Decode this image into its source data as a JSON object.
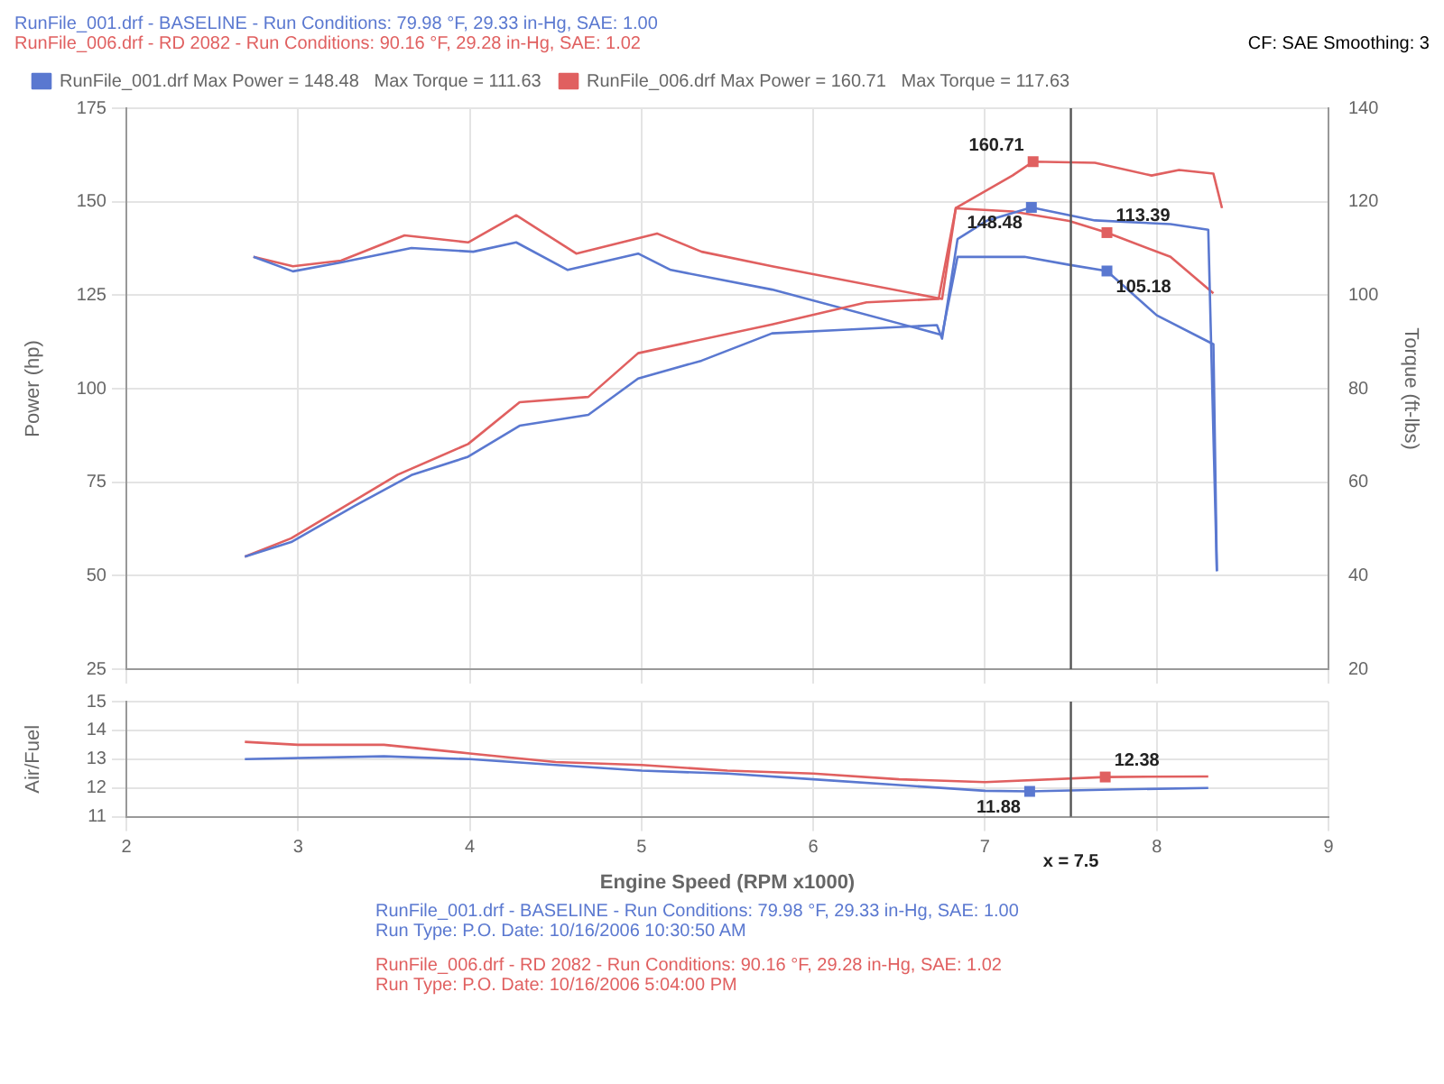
{
  "chart_data": [
    {
      "type": "line",
      "annotations": [
        "RunFile_001.drf - BASELINE - Run Conditions: 79.98 °F, 29.33 in-Hg, SAE: 1.00",
        "RunFile_006.drf - RD 2082 - Run Conditions: 90.16 °F, 29.28 in-Hg, SAE: 1.02",
        "CF: SAE Smoothing: 3"
      ],
      "ylabel": "Power (hp)",
      "y2label": "Torque (ft-lbs)",
      "xlim": [
        2,
        9
      ],
      "xticks": [
        2,
        3,
        4,
        5,
        6,
        7,
        8,
        9
      ],
      "ylim": [
        25,
        175
      ],
      "yticks": [
        25,
        50,
        75,
        100,
        125,
        150,
        175
      ],
      "y2lim": [
        20,
        140
      ],
      "y2ticks": [
        20,
        40,
        60,
        80,
        100,
        120,
        140
      ],
      "grid": true,
      "legend": "top left",
      "tick_labels": "y",
      "ref_lines": [
        {
          "axis": "x",
          "value": 7.5
        }
      ],
      "series": [
        {
          "name": "RunFile_001.drf Max Power = 148.48   Max Torque = 111.63",
          "color": "#5a78d0",
          "x": [
            2.69,
            2.96,
            3.33,
            3.66,
            3.99,
            4.29,
            4.69,
            4.98,
            5.35,
            5.76,
            6.2,
            6.72,
            6.75,
            6.84,
            7.01,
            7.27,
            7.64,
            8.08,
            8.3,
            8.35
          ],
          "values": [
            55.1,
            59,
            68.7,
            76.9,
            81.8,
            90.1,
            93,
            102.7,
            107.5,
            114.8,
            115.8,
            117,
            113.4,
            140,
            144.9,
            148.48,
            145,
            144,
            142.5,
            51.2
          ],
          "value_labels": [
            null,
            null,
            null,
            null,
            null,
            null,
            null,
            null,
            null,
            null,
            null,
            null,
            null,
            null,
            null,
            "148.48",
            null,
            null,
            null,
            null
          ]
        },
        {
          "name": "RunFile_006.drf Max Power = 160.71   Max Torque = 117.63",
          "color": "#e06060",
          "x": [
            2.69,
            2.96,
            3.58,
            3.99,
            4.29,
            4.69,
            4.98,
            5.76,
            6.31,
            6.73,
            6.83,
            7.16,
            7.28,
            7.64,
            7.97,
            8.13,
            8.33,
            8.38
          ],
          "values": [
            55.1,
            60,
            77,
            85.2,
            96.4,
            97.8,
            109.5,
            117.2,
            123.1,
            124,
            148.3,
            157,
            160.71,
            160.4,
            157,
            158.5,
            157.5,
            148.3
          ],
          "value_labels": [
            null,
            null,
            null,
            null,
            null,
            null,
            null,
            null,
            null,
            null,
            null,
            null,
            "160.71",
            null,
            null,
            null,
            null,
            null
          ]
        },
        {
          "color": "#5a78d0",
          "axis": "y2",
          "x": [
            2.74,
            2.97,
            3.25,
            3.66,
            4.02,
            4.27,
            4.57,
            4.98,
            5.17,
            5.76,
            6.75,
            6.84,
            7.23,
            7.49,
            7.71,
            8,
            8.33,
            8.35
          ],
          "values": [
            108.2,
            105.1,
            107,
            110.1,
            109.3,
            111.3,
            105.4,
            108.9,
            105.4,
            101.2,
            91.5,
            108.2,
            108.2,
            106.5,
            105.18,
            95.7,
            89.5,
            41
          ],
          "value_labels": [
            null,
            null,
            null,
            null,
            null,
            null,
            null,
            null,
            null,
            null,
            null,
            null,
            null,
            null,
            "105.18",
            null,
            null,
            null
          ]
        },
        {
          "color": "#e06060",
          "axis": "y2",
          "x": [
            2.74,
            2.97,
            3.25,
            3.62,
            3.99,
            4.27,
            4.62,
            5.09,
            5.35,
            5.76,
            6.75,
            6.83,
            7.16,
            7.49,
            7.71,
            8.08,
            8.33
          ],
          "values": [
            108.2,
            106.2,
            107.4,
            112.8,
            111.3,
            117.1,
            108.9,
            113.2,
            109.3,
            106.2,
            99.2,
            118.6,
            117.9,
            115.9,
            113.39,
            108.2,
            100.4
          ],
          "value_labels": [
            null,
            null,
            null,
            null,
            null,
            null,
            null,
            null,
            null,
            null,
            null,
            null,
            null,
            null,
            "113.39",
            null,
            null
          ]
        }
      ]
    },
    {
      "type": "line",
      "xlabel": "Engine Speed (RPM x1000)",
      "ylabel": "Air/Fuel",
      "xlim": [
        2,
        9
      ],
      "xticks": [
        2,
        3,
        4,
        5,
        6,
        7,
        8,
        9
      ],
      "ylim": [
        11,
        15
      ],
      "yticks": [
        11,
        12,
        13,
        14,
        15
      ],
      "grid": true,
      "ref_lines": [
        {
          "axis": "x",
          "value": 7.5,
          "label": "x = 7.5"
        }
      ],
      "annotations": [
        "RunFile_001.drf - BASELINE - Run Conditions: 79.98 °F, 29.33 in-Hg, SAE: 1.00",
        "Run Type: P.O. Date: 10/16/2006 10:30:50 AM",
        "RunFile_006.drf - RD 2082 - Run Conditions: 90.16 °F, 29.28 in-Hg, SAE: 1.02",
        "Run Type: P.O. Date: 10/16/2006 5:04:00 PM"
      ],
      "series": [
        {
          "color": "#5a78d0",
          "x": [
            2.69,
            3.5,
            4,
            4.5,
            5,
            5.5,
            6,
            6.5,
            7,
            7.26,
            7.8,
            8.3
          ],
          "values": [
            13,
            13.1,
            13,
            12.8,
            12.6,
            12.5,
            12.3,
            12.1,
            11.9,
            11.88,
            11.95,
            12
          ],
          "value_labels": [
            null,
            null,
            null,
            null,
            null,
            null,
            null,
            null,
            null,
            "11.88",
            null,
            null
          ]
        },
        {
          "color": "#e06060",
          "x": [
            2.69,
            3,
            3.5,
            4,
            4.5,
            5,
            5.5,
            6,
            6.5,
            7,
            7.7,
            8.3
          ],
          "values": [
            13.6,
            13.5,
            13.5,
            13.2,
            12.9,
            12.8,
            12.6,
            12.5,
            12.3,
            12.2,
            12.38,
            12.4
          ],
          "value_labels": [
            null,
            null,
            null,
            null,
            null,
            null,
            null,
            null,
            null,
            null,
            "12.38",
            null
          ]
        }
      ]
    }
  ]
}
